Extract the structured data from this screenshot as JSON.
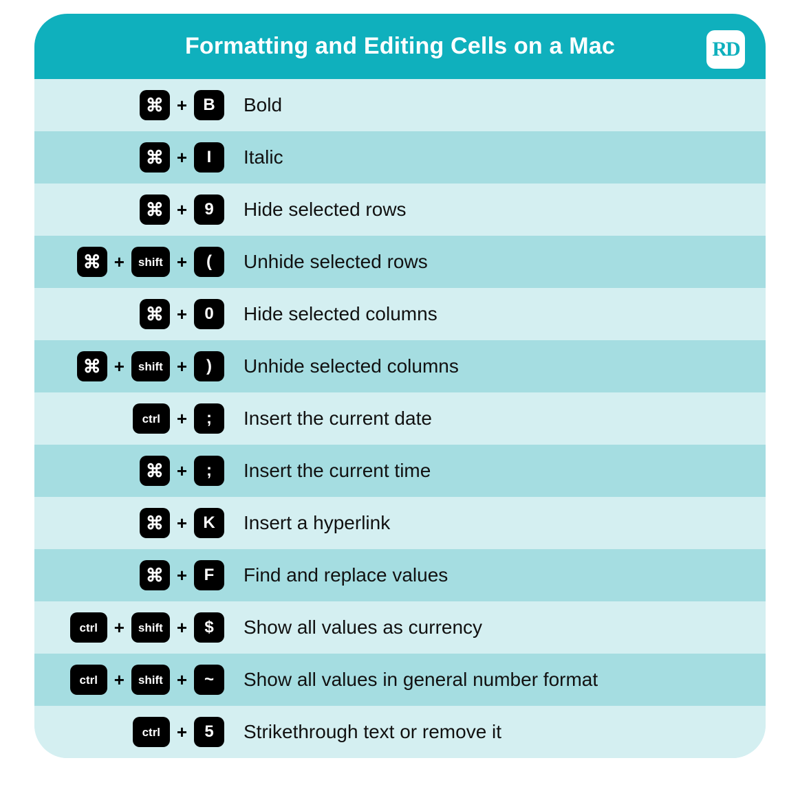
{
  "title": "Formatting and Editing Cells on a Mac",
  "logo_text": "RD",
  "colors": {
    "header_bg": "#0fb0bd",
    "header_text": "#ffffff",
    "logo_bg": "#ffffff",
    "logo_text": "#0fb0bd",
    "row_odd_bg": "#d4eff1",
    "row_even_bg": "#a5dde1",
    "text": "#111111",
    "key_bg": "#000000",
    "key_text": "#ffffff"
  },
  "joiner": "+",
  "rows": [
    {
      "keys": [
        {
          "type": "cmd",
          "label": "⌘"
        },
        {
          "type": "char",
          "label": "B"
        }
      ],
      "desc": "Bold"
    },
    {
      "keys": [
        {
          "type": "cmd",
          "label": "⌘"
        },
        {
          "type": "char",
          "label": "I"
        }
      ],
      "desc": "Italic"
    },
    {
      "keys": [
        {
          "type": "cmd",
          "label": "⌘"
        },
        {
          "type": "char",
          "label": "9"
        }
      ],
      "desc": "Hide selected rows"
    },
    {
      "keys": [
        {
          "type": "cmd",
          "label": "⌘"
        },
        {
          "type": "word",
          "label": "shift"
        },
        {
          "type": "char",
          "label": "("
        }
      ],
      "desc": "Unhide selected rows"
    },
    {
      "keys": [
        {
          "type": "cmd",
          "label": "⌘"
        },
        {
          "type": "char",
          "label": "0"
        }
      ],
      "desc": "Hide selected columns"
    },
    {
      "keys": [
        {
          "type": "cmd",
          "label": "⌘"
        },
        {
          "type": "word",
          "label": "shift"
        },
        {
          "type": "char",
          "label": ")"
        }
      ],
      "desc": "Unhide selected columns"
    },
    {
      "keys": [
        {
          "type": "word",
          "label": "ctrl"
        },
        {
          "type": "char",
          "label": ";"
        }
      ],
      "desc": "Insert the current date"
    },
    {
      "keys": [
        {
          "type": "cmd",
          "label": "⌘"
        },
        {
          "type": "char",
          "label": ";"
        }
      ],
      "desc": "Insert the current time"
    },
    {
      "keys": [
        {
          "type": "cmd",
          "label": "⌘"
        },
        {
          "type": "char",
          "label": "K"
        }
      ],
      "desc": "Insert a hyperlink"
    },
    {
      "keys": [
        {
          "type": "cmd",
          "label": "⌘"
        },
        {
          "type": "char",
          "label": "F"
        }
      ],
      "desc": "Find and replace values"
    },
    {
      "keys": [
        {
          "type": "word",
          "label": "ctrl"
        },
        {
          "type": "word",
          "label": "shift"
        },
        {
          "type": "char",
          "label": "$"
        }
      ],
      "desc": "Show all values as currency"
    },
    {
      "keys": [
        {
          "type": "word",
          "label": "ctrl"
        },
        {
          "type": "word",
          "label": "shift"
        },
        {
          "type": "char",
          "label": "~"
        }
      ],
      "desc": "Show all values in general number format"
    },
    {
      "keys": [
        {
          "type": "word",
          "label": "ctrl"
        },
        {
          "type": "char",
          "label": "5"
        }
      ],
      "desc": "Strikethrough text or remove it"
    }
  ]
}
